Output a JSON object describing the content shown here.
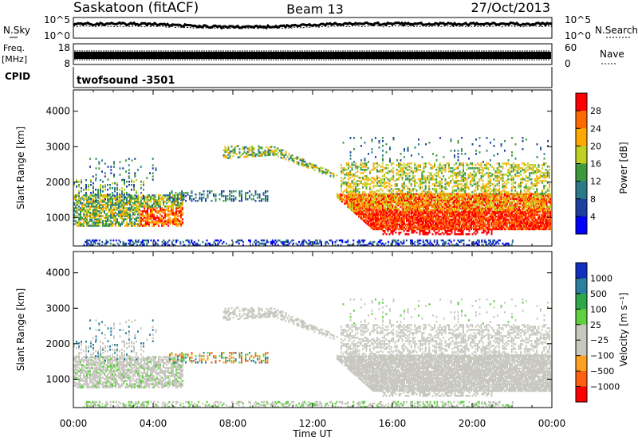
{
  "header": {
    "station": "Saskatoon (fitACF)",
    "beam": "Beam 13",
    "date": "27/Oct/2013"
  },
  "noise_panel": {
    "left_label": "N.Sky",
    "right_label": "N.Search",
    "ticks": [
      "10^5",
      "10^0"
    ]
  },
  "freq_panel": {
    "left_label_line1": "Freq.",
    "left_label_line2": "[MHz]",
    "left_ticks": [
      "18",
      "8"
    ],
    "right_label": "Nave",
    "right_ticks": [
      "60",
      "0"
    ]
  },
  "cpid_panel": {
    "label": "CPID",
    "value": "twofsound -3501"
  },
  "chart_data": [
    {
      "type": "heatmap",
      "title": "Power",
      "ylabel": "Slant Range [km]",
      "xlabel": "Time UT",
      "x_ticks": [
        "00:00",
        "04:00",
        "08:00",
        "12:00",
        "16:00",
        "20:00",
        "00:00"
      ],
      "y_ticks": [
        1000,
        2000,
        3000,
        4000
      ],
      "ylim": [
        200,
        4600
      ],
      "colorbar_label": "Power [dB]",
      "colorbar_ticks": [
        "28",
        "24",
        "20",
        "16",
        "12",
        "8",
        "4"
      ],
      "colorbar_colors": [
        "#ff0000",
        "#ff6a00",
        "#ffaa00",
        "#c0d020",
        "#3c9a3c",
        "#2a7a8a",
        "#1f3fa0",
        "#0000ff"
      ]
    },
    {
      "type": "heatmap",
      "title": "Velocity",
      "ylabel": "Slant Range [km]",
      "xlabel": "Time UT",
      "x_ticks": [
        "00:00",
        "04:00",
        "08:00",
        "12:00",
        "16:00",
        "20:00",
        "00:00"
      ],
      "y_ticks": [
        1000,
        2000,
        3000,
        4000
      ],
      "ylim": [
        200,
        4600
      ],
      "colorbar_label": "Velocity [m s⁻¹]",
      "colorbar_ticks": [
        "1000",
        "500",
        "100",
        "25",
        "−25",
        "−100",
        "−500",
        "−1000"
      ],
      "colorbar_colors": [
        "#1030c0",
        "#2a80a0",
        "#2fa84a",
        "#60d040",
        "#c8c8c0",
        "#c8c8c0",
        "#ffa020",
        "#ff6010",
        "#ff0000"
      ]
    }
  ],
  "x_axis_title": "Time UT"
}
